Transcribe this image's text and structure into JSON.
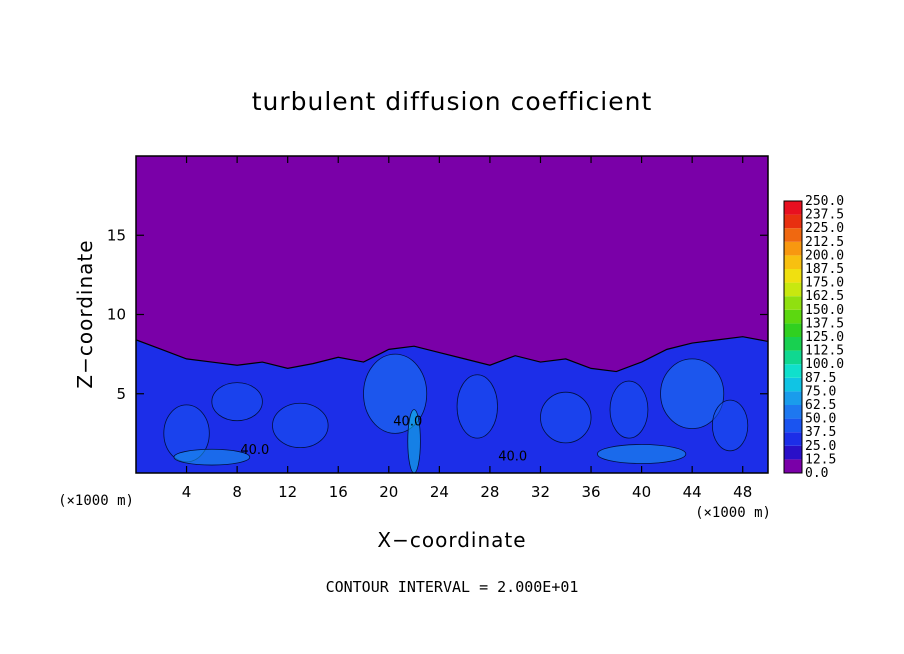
{
  "chart_data": {
    "type": "heatmap",
    "title": "turbulent diffusion coefficient",
    "xlabel": "X−coordinate",
    "ylabel": "Z−coordinate",
    "x_unit_left": "(×1000 m)",
    "x_unit_right": "(×1000 m)",
    "xlim": [
      0,
      50
    ],
    "ylim": [
      0,
      20
    ],
    "x_ticks": [
      4,
      8,
      12,
      16,
      20,
      24,
      28,
      32,
      36,
      40,
      44,
      48
    ],
    "y_ticks": [
      5,
      10,
      15
    ],
    "footnote": "CONTOUR INTERVAL = 2.000E+01",
    "colorbar": {
      "levels": [
        "0.0",
        "12.5",
        "25.0",
        "37.5",
        "50.0",
        "62.5",
        "75.0",
        "87.5",
        "100.0",
        "112.5",
        "125.0",
        "137.5",
        "150.0",
        "162.5",
        "175.0",
        "187.5",
        "200.0",
        "212.5",
        "225.0",
        "237.5",
        "250.0"
      ],
      "colors": [
        "#7a00a8",
        "#2a10c8",
        "#1c2ee8",
        "#1a54f0",
        "#1e78f0",
        "#1a9cec",
        "#10c4e4",
        "#10e0cc",
        "#10d890",
        "#18d050",
        "#30d020",
        "#5cd810",
        "#90e010",
        "#c8e810",
        "#f0e010",
        "#f8c010",
        "#f89810",
        "#f06810",
        "#e83010",
        "#e81020",
        "#f08080"
      ]
    },
    "boundary_layer_top": [
      [
        0,
        8.4
      ],
      [
        2,
        7.8
      ],
      [
        4,
        7.2
      ],
      [
        6,
        7.0
      ],
      [
        8,
        6.8
      ],
      [
        10,
        7.0
      ],
      [
        12,
        6.6
      ],
      [
        14,
        6.9
      ],
      [
        16,
        7.3
      ],
      [
        18,
        7.0
      ],
      [
        20,
        7.8
      ],
      [
        22,
        8.0
      ],
      [
        24,
        7.6
      ],
      [
        26,
        7.2
      ],
      [
        28,
        6.8
      ],
      [
        30,
        7.4
      ],
      [
        32,
        7.0
      ],
      [
        34,
        7.2
      ],
      [
        36,
        6.6
      ],
      [
        38,
        6.4
      ],
      [
        40,
        7.0
      ],
      [
        42,
        7.8
      ],
      [
        44,
        8.2
      ],
      [
        46,
        8.4
      ],
      [
        48,
        8.6
      ],
      [
        50,
        8.3
      ]
    ],
    "contour_labels": [
      {
        "text": "40.0",
        "x": 9.4,
        "z": 1.2
      },
      {
        "text": "40.0",
        "x": 21.5,
        "z": 3.0
      },
      {
        "text": "40.0",
        "x": 29.8,
        "z": 0.8
      }
    ]
  }
}
